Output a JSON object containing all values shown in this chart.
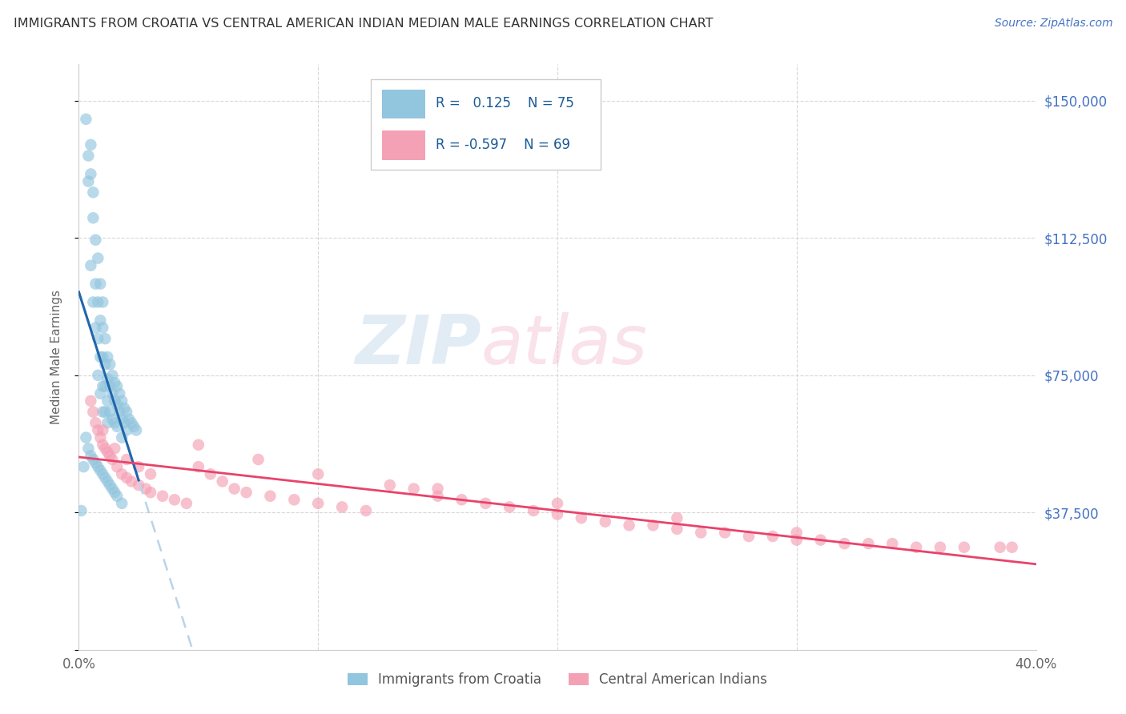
{
  "title": "IMMIGRANTS FROM CROATIA VS CENTRAL AMERICAN INDIAN MEDIAN MALE EARNINGS CORRELATION CHART",
  "source": "Source: ZipAtlas.com",
  "ylabel": "Median Male Earnings",
  "xlim": [
    0.0,
    0.4
  ],
  "ylim": [
    0,
    160000
  ],
  "color_blue": "#92c5de",
  "color_pink": "#f4a0b5",
  "color_line_blue": "#2166ac",
  "color_line_pink": "#e8436a",
  "color_dashed": "#b8d4ea",
  "color_title": "#333333",
  "color_source": "#4472c4",
  "color_ytick": "#4472c4",
  "watermark_zip": "ZIP",
  "watermark_atlas": "atlas",
  "background_color": "#ffffff",
  "grid_color": "#d8d8d8",
  "croatia_x": [
    0.001,
    0.002,
    0.003,
    0.004,
    0.004,
    0.005,
    0.005,
    0.005,
    0.006,
    0.006,
    0.006,
    0.007,
    0.007,
    0.007,
    0.008,
    0.008,
    0.008,
    0.008,
    0.009,
    0.009,
    0.009,
    0.009,
    0.01,
    0.01,
    0.01,
    0.01,
    0.01,
    0.011,
    0.011,
    0.011,
    0.011,
    0.012,
    0.012,
    0.012,
    0.012,
    0.013,
    0.013,
    0.013,
    0.014,
    0.014,
    0.014,
    0.015,
    0.015,
    0.015,
    0.016,
    0.016,
    0.016,
    0.017,
    0.017,
    0.018,
    0.018,
    0.018,
    0.019,
    0.019,
    0.02,
    0.02,
    0.021,
    0.022,
    0.023,
    0.024,
    0.003,
    0.004,
    0.005,
    0.006,
    0.007,
    0.008,
    0.009,
    0.01,
    0.011,
    0.012,
    0.013,
    0.014,
    0.015,
    0.016,
    0.018
  ],
  "croatia_y": [
    38000,
    50000,
    145000,
    135000,
    128000,
    138000,
    130000,
    105000,
    125000,
    118000,
    95000,
    112000,
    100000,
    88000,
    107000,
    95000,
    85000,
    75000,
    100000,
    90000,
    80000,
    70000,
    95000,
    88000,
    80000,
    72000,
    65000,
    85000,
    78000,
    72000,
    65000,
    80000,
    74000,
    68000,
    62000,
    78000,
    72000,
    65000,
    75000,
    70000,
    63000,
    73000,
    68000,
    62000,
    72000,
    67000,
    61000,
    70000,
    65000,
    68000,
    63000,
    58000,
    66000,
    62000,
    65000,
    60000,
    63000,
    62000,
    61000,
    60000,
    58000,
    55000,
    53000,
    52000,
    51000,
    50000,
    49000,
    48000,
    47000,
    46000,
    45000,
    44000,
    43000,
    42000,
    40000
  ],
  "indian_x": [
    0.005,
    0.006,
    0.007,
    0.008,
    0.009,
    0.01,
    0.011,
    0.012,
    0.013,
    0.014,
    0.016,
    0.018,
    0.02,
    0.022,
    0.025,
    0.028,
    0.03,
    0.035,
    0.04,
    0.045,
    0.05,
    0.055,
    0.06,
    0.065,
    0.07,
    0.08,
    0.09,
    0.1,
    0.11,
    0.12,
    0.13,
    0.14,
    0.15,
    0.16,
    0.17,
    0.18,
    0.19,
    0.2,
    0.21,
    0.22,
    0.23,
    0.24,
    0.25,
    0.26,
    0.27,
    0.28,
    0.29,
    0.3,
    0.31,
    0.32,
    0.33,
    0.34,
    0.35,
    0.36,
    0.37,
    0.385,
    0.01,
    0.015,
    0.02,
    0.025,
    0.03,
    0.05,
    0.075,
    0.1,
    0.15,
    0.2,
    0.25,
    0.3,
    0.39
  ],
  "indian_y": [
    68000,
    65000,
    62000,
    60000,
    58000,
    56000,
    55000,
    54000,
    53000,
    52000,
    50000,
    48000,
    47000,
    46000,
    45000,
    44000,
    43000,
    42000,
    41000,
    40000,
    50000,
    48000,
    46000,
    44000,
    43000,
    42000,
    41000,
    40000,
    39000,
    38000,
    45000,
    44000,
    42000,
    41000,
    40000,
    39000,
    38000,
    37000,
    36000,
    35000,
    34000,
    34000,
    33000,
    32000,
    32000,
    31000,
    31000,
    30000,
    30000,
    29000,
    29000,
    29000,
    28000,
    28000,
    28000,
    28000,
    60000,
    55000,
    52000,
    50000,
    48000,
    56000,
    52000,
    48000,
    44000,
    40000,
    36000,
    32000,
    28000
  ]
}
